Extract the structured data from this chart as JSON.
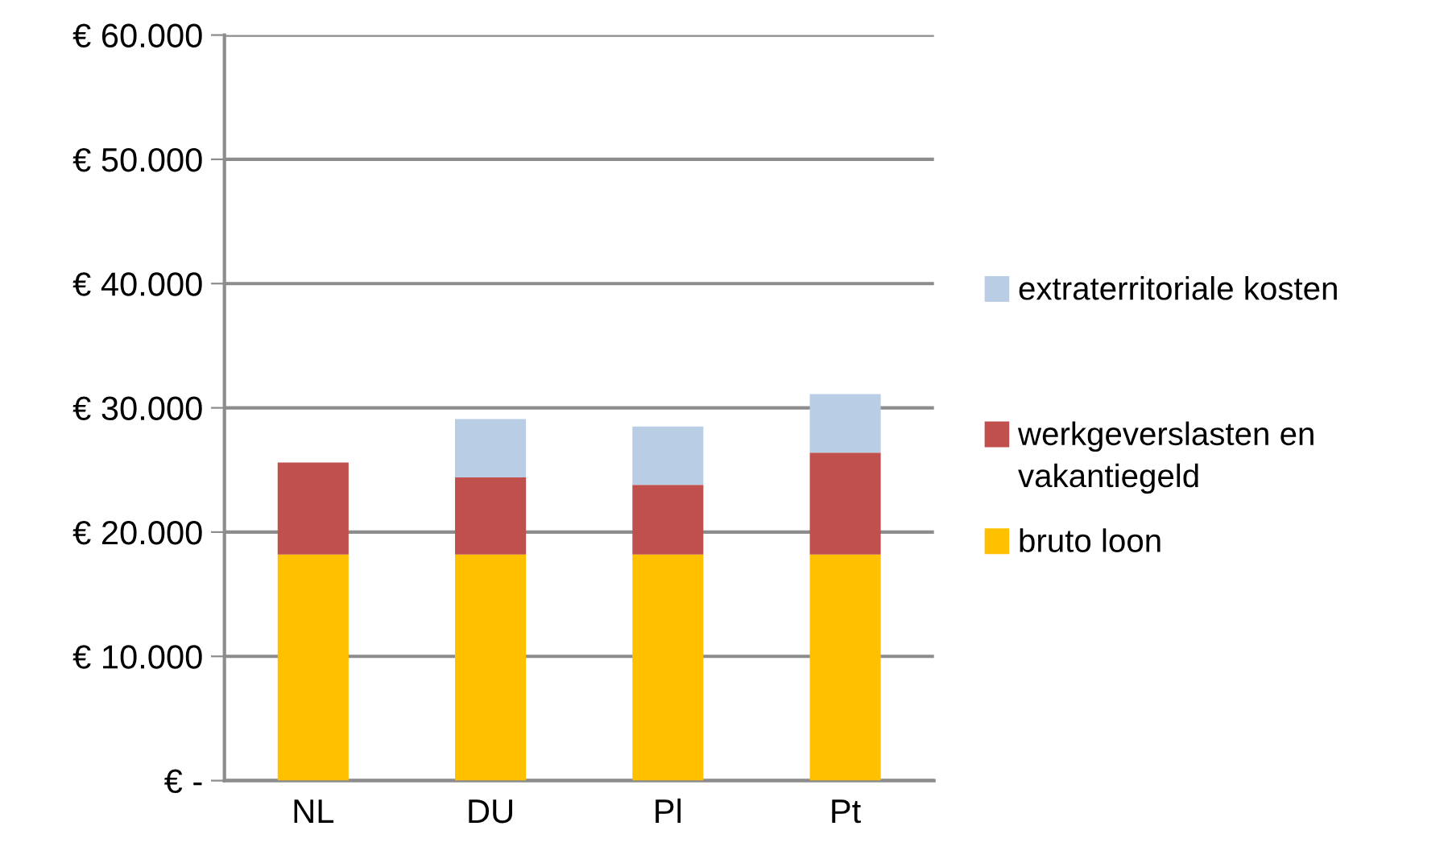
{
  "chart_data": {
    "type": "bar",
    "stacked": true,
    "categories": [
      "NL",
      "DU",
      "Pl",
      "Pt"
    ],
    "series": [
      {
        "name": "bruto loon",
        "color": "#ffc000",
        "values": [
          18200,
          18200,
          18200,
          18200
        ]
      },
      {
        "name": "werkgeverslasten en vakantiegeld",
        "color": "#c0504d",
        "values": [
          7400,
          6200,
          5600,
          8200
        ]
      },
      {
        "name": "extraterritoriale kosten",
        "color": "#b9cde5",
        "values": [
          0,
          4700,
          4700,
          4700
        ]
      }
    ],
    "ylim": [
      0,
      60000
    ],
    "yticks": [
      {
        "value": 0,
        "label": "€ -"
      },
      {
        "value": 10000,
        "label": "€ 10.000"
      },
      {
        "value": 20000,
        "label": "€ 20.000"
      },
      {
        "value": 30000,
        "label": "€ 30.000"
      },
      {
        "value": 40000,
        "label": "€ 40.000"
      },
      {
        "value": 50000,
        "label": "€ 50.000"
      },
      {
        "value": 60000,
        "label": "€ 60.000"
      }
    ],
    "grid": "y",
    "legend": "right"
  }
}
